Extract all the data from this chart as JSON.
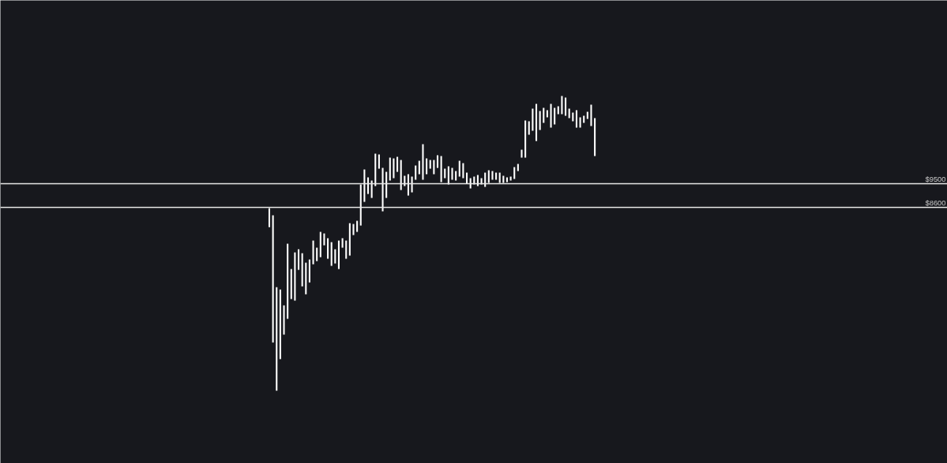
{
  "chart_data": {
    "type": "bar",
    "categories": [
      null,
      null,
      null,
      null,
      null,
      null,
      null,
      null,
      null,
      null,
      null,
      null,
      null,
      null,
      null,
      null,
      null,
      null,
      null,
      null,
      null,
      null,
      null,
      null,
      null,
      null,
      null,
      null,
      null,
      null,
      null,
      null,
      null,
      null,
      null,
      null,
      null,
      null,
      null,
      null,
      null,
      null,
      null,
      null,
      null,
      null,
      null,
      null,
      null,
      null,
      null,
      null,
      null,
      null,
      null,
      null,
      null,
      null,
      null,
      null,
      null,
      null,
      null,
      null,
      null,
      null,
      null,
      null,
      null,
      null,
      null,
      null,
      null,
      null,
      null,
      null,
      null,
      null,
      null,
      null,
      null,
      null,
      null,
      null,
      null,
      null,
      null,
      null,
      null,
      null
    ],
    "base": [
      7850,
      3470,
      1640,
      2840,
      3770,
      4370,
      5120,
      5060,
      6230,
      5600,
      5300,
      5750,
      6440,
      6560,
      6710,
      7160,
      6650,
      6380,
      6470,
      6260,
      7070,
      6650,
      6770,
      7550,
      7670,
      7910,
      8810,
      9110,
      8960,
      9410,
      10070,
      8450,
      8960,
      9620,
      9710,
      9950,
      9260,
      9410,
      9050,
      9170,
      9650,
      9860,
      9650,
      9860,
      10070,
      9860,
      10100,
      9560,
      9710,
      9470,
      9650,
      9620,
      9770,
      9710,
      9500,
      9320,
      9470,
      9410,
      9470,
      9380,
      9530,
      9650,
      9650,
      9530,
      9530,
      9560,
      9620,
      9680,
      9980,
      10490,
      10490,
      11360,
      11510,
      11120,
      11540,
      11810,
      12020,
      11630,
      11750,
      12140,
      12140,
      12080,
      11990,
      11870,
      11630,
      11630,
      11810,
      11960,
      11690,
      10550
    ],
    "values": [
      720,
      4830,
      3930,
      2640,
      1110,
      2850,
      1140,
      1830,
      780,
      1260,
      1200,
      870,
      900,
      510,
      960,
      450,
      780,
      900,
      540,
      1080,
      360,
      690,
      1230,
      420,
      420,
      1560,
      1230,
      630,
      660,
      1230,
      540,
      1650,
      990,
      870,
      750,
      570,
      1140,
      390,
      810,
      600,
      540,
      510,
      1350,
      600,
      330,
      540,
      480,
      990,
      360,
      690,
      450,
      360,
      600,
      570,
      420,
      390,
      300,
      420,
      240,
      540,
      480,
      330,
      270,
      390,
      270,
      180,
      150,
      450,
      270,
      300,
      1410,
      510,
      840,
      1410,
      720,
      570,
      270,
      900,
      630,
      300,
      690,
      690,
      360,
      330,
      660,
      390,
      270,
      270,
      810,
      1440
    ],
    "color": "#ffffff",
    "ylim": [
      -1120,
      16460
    ],
    "ref_lines": [
      {
        "axis": "y",
        "value": 9500,
        "label": "$9500",
        "color": "#e6e6e6"
      },
      {
        "axis": "y",
        "value": 8600,
        "label": "$8600",
        "color": "#e6e6e6"
      }
    ]
  }
}
